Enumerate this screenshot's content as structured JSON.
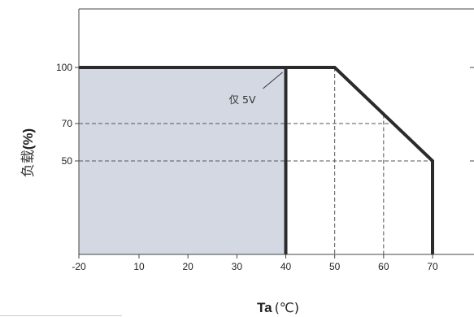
{
  "chart_data": {
    "type": "line",
    "title": "",
    "xlabel": "Ta",
    "xlabel_unit": "(℃)",
    "ylabel": "负载",
    "ylabel_unit": "(%)",
    "xlim": [
      -20,
      80
    ],
    "ylim": [
      0,
      130
    ],
    "x_ticks": [
      -20,
      10,
      20,
      30,
      40,
      50,
      60,
      70
    ],
    "x_tick_labels": [
      "-20",
      "10",
      "20",
      "30",
      "40",
      "50",
      "60",
      "70"
    ],
    "y_ticks": [
      50,
      70,
      100
    ],
    "y_tick_labels": [
      "50",
      "70",
      "100"
    ],
    "series": [
      {
        "role": "derating-curve",
        "x": [
          -20,
          50,
          70,
          70
        ],
        "y": [
          100,
          100,
          50,
          0
        ]
      },
      {
        "role": "5v-only-boundary",
        "x": [
          -20,
          40,
          40
        ],
        "y": [
          100,
          100,
          0
        ]
      }
    ],
    "shaded_region": {
      "x": [
        -20,
        40
      ],
      "y": [
        0,
        100
      ]
    },
    "annotations": [
      {
        "text": "仅 5V",
        "x": 40,
        "y": 100
      }
    ],
    "reference_lines": {
      "horizontal": [
        70,
        50
      ],
      "vertical": [
        50,
        60
      ]
    },
    "colors": {
      "curve": "#2b2b2b",
      "shade": "#d3d8e2",
      "dash": "#555555",
      "frame": "#444444"
    }
  }
}
